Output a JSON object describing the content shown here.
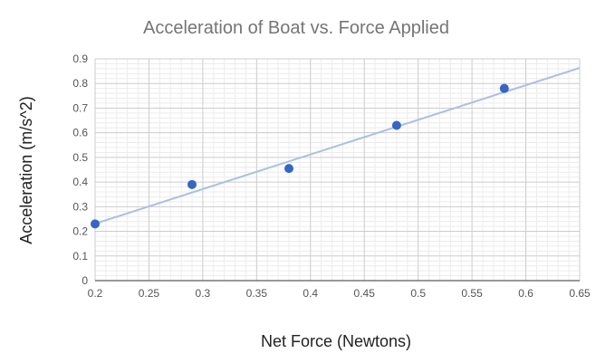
{
  "chart_data": {
    "type": "scatter",
    "title": "Acceleration of Boat vs. Force Applied",
    "xlabel": "Net Force (Newtons)",
    "ylabel": "Acceleration (m/s^2)",
    "xlim": [
      0.2,
      0.65
    ],
    "ylim": [
      0,
      0.9
    ],
    "x_ticks": [
      "0.2",
      "0.25",
      "0.3",
      "0.35",
      "0.4",
      "0.45",
      "0.5",
      "0.55",
      "0.6",
      "0.65"
    ],
    "y_ticks": [
      "0",
      "0.1",
      "0.2",
      "0.3",
      "0.4",
      "0.5",
      "0.6",
      "0.7",
      "0.8",
      "0.9"
    ],
    "grid": true,
    "minor_grid": true,
    "legend": "none",
    "series": [
      {
        "x": [
          0.2,
          0.29,
          0.38,
          0.48,
          0.58
        ],
        "y": [
          0.23,
          0.39,
          0.455,
          0.63,
          0.78
        ],
        "color": "#3366cc"
      }
    ],
    "trendline": {
      "type": "linear",
      "slope": 1.405,
      "intercept": -0.05,
      "color": "#a8c0e8"
    }
  }
}
